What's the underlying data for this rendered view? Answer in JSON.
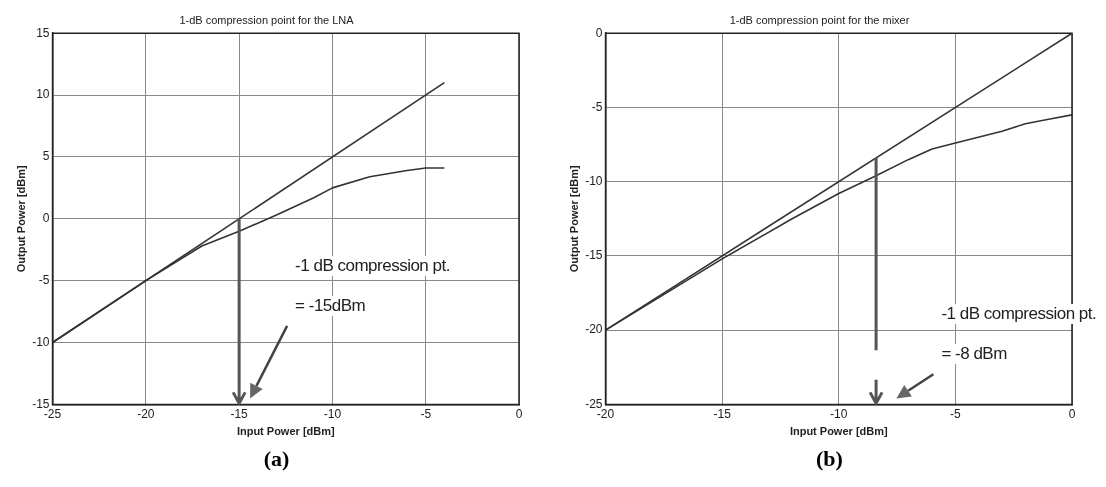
{
  "chart_data": [
    {
      "type": "line",
      "title": "1-dB compression point for the LNA",
      "xlabel": "Input Power [dBm]",
      "ylabel": "Output Power [dBm]",
      "series": [
        {
          "color": "#333333",
          "x": [
            -25,
            -4
          ],
          "values": [
            -10,
            11
          ]
        },
        {
          "color": "#333333",
          "x": [
            -25,
            -20,
            -17,
            -15,
            -13,
            -11,
            -10,
            -8,
            -6,
            -5,
            -4
          ],
          "values": [
            -10,
            -5,
            -2.2,
            -1,
            0.3,
            1.7,
            2.5,
            3.4,
            3.9,
            4.1,
            4.1
          ]
        }
      ],
      "xlim": [
        -25,
        0
      ],
      "xticks": [
        -25,
        -20,
        -15,
        -10,
        -5,
        0
      ],
      "ylim": [
        -15,
        15
      ],
      "yticks": [
        -15,
        -10,
        -5,
        0,
        5,
        10,
        15
      ],
      "grid": true,
      "legend": false,
      "marker": "none",
      "line_style": "solid",
      "annotations": [
        "-1 dB compression pt.",
        "= -15dBm",
        "(a)"
      ]
    },
    {
      "type": "line",
      "title": "1-dB compression point for the mixer",
      "xlabel": "Input Power [dBm]",
      "ylabel": "Output Power [dBm]",
      "series": [
        {
          "color": "#333333",
          "x": [
            -20,
            0
          ],
          "values": [
            -20,
            0
          ]
        },
        {
          "color": "#333333",
          "x": [
            -20,
            -15,
            -12,
            -10,
            -8.4,
            -7,
            -6,
            -5,
            -3,
            -2,
            -1,
            0
          ],
          "values": [
            -20,
            -15.2,
            -12.5,
            -10.8,
            -9.6,
            -8.5,
            -7.8,
            -7.4,
            -6.6,
            -6.1,
            -5.8,
            -5.5
          ]
        }
      ],
      "xlim": [
        -20,
        0
      ],
      "xticks": [
        -20,
        -15,
        -10,
        -5,
        0
      ],
      "ylim": [
        -25,
        0
      ],
      "yticks": [
        -25,
        -20,
        -15,
        -10,
        -5,
        0
      ],
      "grid": true,
      "legend": false,
      "marker": "none",
      "line_style": "solid",
      "annotations": [
        "-1 dB compression pt.",
        "= -8 dBm",
        "(b)"
      ]
    }
  ]
}
